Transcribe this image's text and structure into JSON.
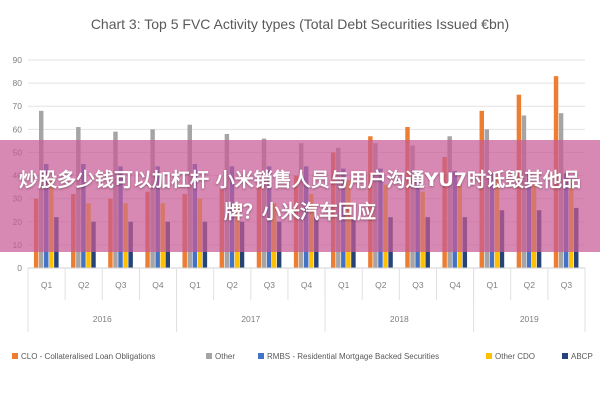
{
  "chart_data": {
    "type": "bar",
    "title": "Chart 3: Top 5 FVC Activity types (Total Debt Securities Issued €bn)",
    "xlabel": "",
    "ylabel": "",
    "ylim": [
      0,
      90
    ],
    "yticks": [
      0,
      10,
      20,
      30,
      40,
      50,
      60,
      70,
      80,
      90
    ],
    "grid": true,
    "legend_position": "bottom",
    "categories": [
      "Q1",
      "Q2",
      "Q3",
      "Q4",
      "Q1",
      "Q2",
      "Q3",
      "Q4",
      "Q1",
      "Q2",
      "Q3",
      "Q4",
      "Q1",
      "Q2",
      "Q3"
    ],
    "groups": [
      {
        "label": "2016",
        "count": 4
      },
      {
        "label": "2017",
        "count": 4
      },
      {
        "label": "2018",
        "count": 4
      },
      {
        "label": "2019",
        "count": 3
      }
    ],
    "series": [
      {
        "name": "CLO - Collateralised Loan Obligations",
        "color": "#ED7D31",
        "values": [
          30,
          32,
          30,
          33,
          32,
          34,
          35,
          40,
          50,
          57,
          61,
          48,
          68,
          75,
          83
        ]
      },
      {
        "name": "Other",
        "color": "#A5A5A5",
        "values": [
          68,
          61,
          59,
          60,
          62,
          58,
          56,
          54,
          52,
          54,
          53,
          57,
          60,
          66,
          67
        ]
      },
      {
        "name": "RMBS - Residential Mortgage Backed Securities",
        "color": "#4472C4",
        "values": [
          45,
          45,
          44,
          44,
          45,
          44,
          44,
          44,
          43,
          43,
          42,
          42,
          41,
          41,
          41
        ]
      },
      {
        "name": "Other CDO",
        "color": "#FFC000",
        "values": [
          38,
          28,
          28,
          28,
          30,
          28,
          28,
          32,
          38,
          36,
          33,
          38,
          40,
          36,
          38
        ]
      },
      {
        "name": "ABCP",
        "color": "#264478",
        "values": [
          22,
          20,
          20,
          20,
          20,
          20,
          20,
          22,
          22,
          22,
          22,
          22,
          25,
          25,
          26
        ]
      }
    ]
  },
  "overlay": {
    "text": "炒股多少钱可以加杠杆 小米销售人员与用户沟通YU7时诋毁其他品牌？小米汽车回应"
  }
}
